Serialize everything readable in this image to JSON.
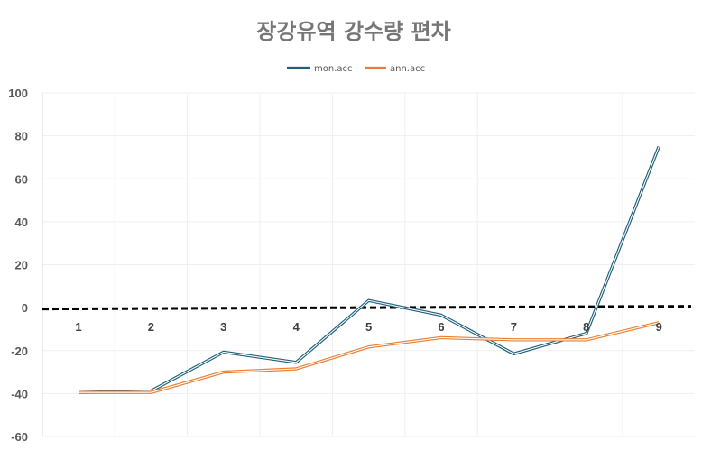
{
  "chart_data": {
    "type": "line",
    "title": "장강유역 강수량 편차",
    "categories": [
      "1",
      "2",
      "3",
      "4",
      "5",
      "6",
      "7",
      "8",
      "9"
    ],
    "series": [
      {
        "name": "mon.acc",
        "color": "#1f5f7a",
        "values": [
          -39.5,
          -38.8,
          -20.7,
          -25.5,
          3.3,
          -3.5,
          -21.5,
          -12.0,
          75.0
        ]
      },
      {
        "name": "ann.acc",
        "color": "#ed7d31",
        "values": [
          -39.5,
          -39.5,
          -30.0,
          -28.5,
          -18.3,
          -14.0,
          -15.0,
          -15.0,
          -7.0
        ]
      }
    ],
    "yticks": [
      "100",
      "80",
      "60",
      "40",
      "20",
      "0",
      "-20",
      "-40",
      "-60"
    ],
    "ylim": [
      -60,
      100
    ],
    "reference_line": {
      "y": 0,
      "style": "dashed",
      "color": "#000000"
    },
    "legend": "top-center",
    "grid": true
  }
}
